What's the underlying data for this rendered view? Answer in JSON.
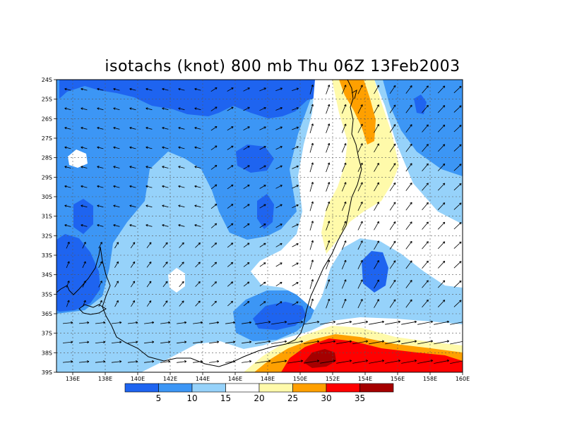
{
  "title": "isotachs (knot) 800 mb Thu 06Z 13Feb2003",
  "lat_labels": [
    "24S",
    "25S",
    "26S",
    "27S",
    "28S",
    "29S",
    "30S",
    "31S",
    "32S",
    "33S",
    "34S",
    "35S",
    "36S",
    "37S",
    "38S",
    "39S"
  ],
  "lon_labels": [
    "136E",
    "138E",
    "140E",
    "142E",
    "144E",
    "146E",
    "148E",
    "150E",
    "152E",
    "154E",
    "156E",
    "158E",
    "160E"
  ],
  "colorbar": {
    "colors": [
      "#1e64f0",
      "#3c96f5",
      "#96d2fa",
      "#ffffff",
      "#fffaaa",
      "#ffa000",
      "#ff0000",
      "#a50000"
    ],
    "labels": [
      "5",
      "10",
      "15",
      "20",
      "25",
      "30",
      "35"
    ]
  },
  "legend_palette": {
    "lt5": "#1e64f0",
    "5_10": "#3c96f5",
    "10_15": "#96d2fa",
    "15_20": "#ffffff",
    "20_25": "#fffaaa",
    "25_30": "#ffa000",
    "30_35": "#ff0000",
    "gt35": "#a50000"
  }
}
